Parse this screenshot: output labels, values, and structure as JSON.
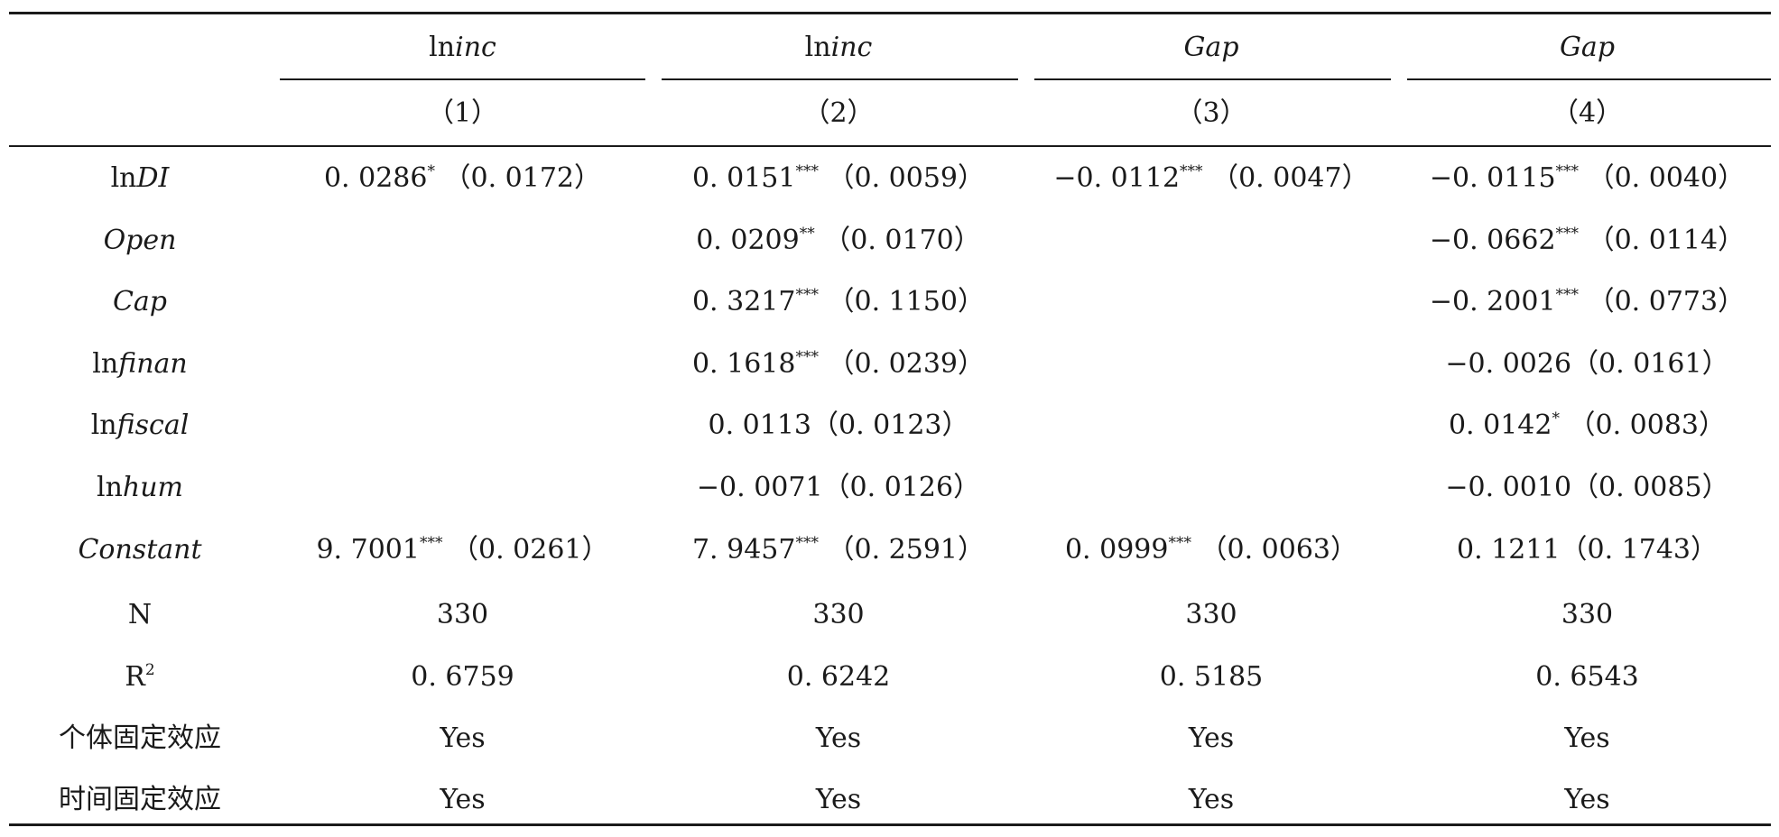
{
  "header": {
    "dep_vars": [
      {
        "prefix": "ln",
        "italic": "inc"
      },
      {
        "prefix": "ln",
        "italic": "inc"
      },
      {
        "prefix": "",
        "italic": "Gap"
      },
      {
        "prefix": "",
        "italic": "Gap"
      }
    ],
    "col_nums": [
      "（1）",
      "（2）",
      "（3）",
      "（4）"
    ]
  },
  "rows": [
    {
      "label_prefix": "ln",
      "label_italic": "DI",
      "cells": [
        {
          "coef": "0. 0286",
          "stars": "*",
          "se": "（0. 0172）"
        },
        {
          "coef": "0. 0151",
          "stars": "***",
          "se": "（0. 0059）"
        },
        {
          "coef": "−0. 0112",
          "stars": "***",
          "se": "（0. 0047）"
        },
        {
          "coef": "−0. 0115",
          "stars": "***",
          "se": "（0. 0040）"
        }
      ]
    },
    {
      "label_prefix": "",
      "label_italic": "Open",
      "cells": [
        {
          "coef": "",
          "stars": "",
          "se": ""
        },
        {
          "coef": "0. 0209",
          "stars": "**",
          "se": "（0. 0170）"
        },
        {
          "coef": "",
          "stars": "",
          "se": ""
        },
        {
          "coef": "−0. 0662",
          "stars": "***",
          "se": "（0. 0114）"
        }
      ]
    },
    {
      "label_prefix": "",
      "label_italic": "Cap",
      "cells": [
        {
          "coef": "",
          "stars": "",
          "se": ""
        },
        {
          "coef": "0. 3217",
          "stars": "***",
          "se": "（0. 1150）"
        },
        {
          "coef": "",
          "stars": "",
          "se": ""
        },
        {
          "coef": "−0. 2001",
          "stars": "***",
          "se": "（0. 0773）"
        }
      ]
    },
    {
      "label_prefix": "ln",
      "label_italic": "finan",
      "cells": [
        {
          "coef": "",
          "stars": "",
          "se": ""
        },
        {
          "coef": "0. 1618",
          "stars": "***",
          "se": "（0. 0239）"
        },
        {
          "coef": "",
          "stars": "",
          "se": ""
        },
        {
          "coef": "−0. 0026",
          "stars": "",
          "se": "（0. 0161）"
        }
      ]
    },
    {
      "label_prefix": "ln",
      "label_italic": "fiscal",
      "cells": [
        {
          "coef": "",
          "stars": "",
          "se": ""
        },
        {
          "coef": "0. 0113",
          "stars": "",
          "se": "（0. 0123）"
        },
        {
          "coef": "",
          "stars": "",
          "se": ""
        },
        {
          "coef": "0. 0142",
          "stars": "*",
          "se": "（0. 0083）"
        }
      ]
    },
    {
      "label_prefix": "ln",
      "label_italic": "hum",
      "cells": [
        {
          "coef": "",
          "stars": "",
          "se": ""
        },
        {
          "coef": "−0. 0071",
          "stars": "",
          "se": "（0. 0126）"
        },
        {
          "coef": "",
          "stars": "",
          "se": ""
        },
        {
          "coef": "−0. 0010",
          "stars": "",
          "se": "（0. 0085）"
        }
      ]
    },
    {
      "label_prefix": "",
      "label_italic": "Constant",
      "cells": [
        {
          "coef": "9. 7001",
          "stars": "***",
          "se": "（0. 0261）"
        },
        {
          "coef": "7. 9457",
          "stars": "***",
          "se": "（0. 2591）"
        },
        {
          "coef": "0. 0999",
          "stars": "***",
          "se": "（0. 0063）"
        },
        {
          "coef": "0. 1211",
          "stars": "",
          "se": "（0. 1743）"
        }
      ]
    }
  ],
  "stats": {
    "n": {
      "label": "N",
      "values": [
        "330",
        "330",
        "330",
        "330"
      ]
    },
    "r2": {
      "label": "R",
      "sup": "2",
      "values": [
        "0. 6759",
        "0. 6242",
        "0. 5185",
        "0. 6543"
      ]
    },
    "individual_fe": {
      "label": "个体固定效应",
      "values": [
        "Yes",
        "Yes",
        "Yes",
        "Yes"
      ]
    },
    "time_fe": {
      "label": "时间固定效应",
      "values": [
        "Yes",
        "Yes",
        "Yes",
        "Yes"
      ]
    }
  }
}
